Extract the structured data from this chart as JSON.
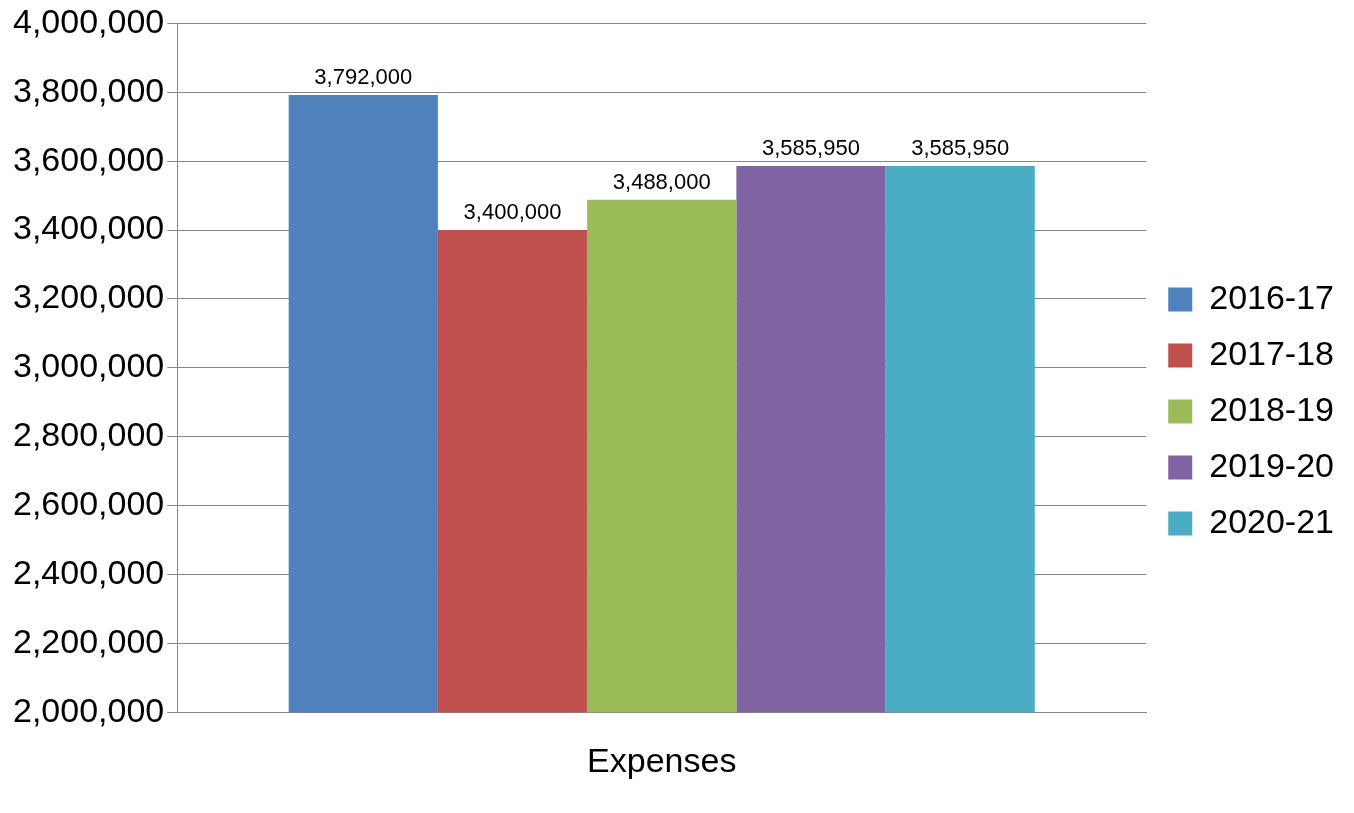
{
  "chart_data": {
    "type": "bar",
    "categories": [
      "Expenses"
    ],
    "series": [
      {
        "name": "2016-17",
        "color": "#4f81bd",
        "values": [
          3792000
        ],
        "value_labels": [
          "3,792,000"
        ]
      },
      {
        "name": "2017-18",
        "color": "#c0504d",
        "values": [
          3400000
        ],
        "value_labels": [
          "3,400,000"
        ]
      },
      {
        "name": "2018-19",
        "color": "#9bbb59",
        "values": [
          3488000
        ],
        "value_labels": [
          "3,488,000"
        ]
      },
      {
        "name": "2019-20",
        "color": "#8064a2",
        "values": [
          3585950
        ],
        "value_labels": [
          "3,585,950"
        ]
      },
      {
        "name": "2020-21",
        "color": "#4bacc6",
        "values": [
          3585950
        ],
        "value_labels": [
          "3,585,950"
        ]
      }
    ],
    "ylim": [
      2000000,
      4000000
    ],
    "yticks": [
      {
        "value": 2000000,
        "label": "2,000,000"
      },
      {
        "value": 2200000,
        "label": "2,200,000"
      },
      {
        "value": 2400000,
        "label": "2,400,000"
      },
      {
        "value": 2600000,
        "label": "2,600,000"
      },
      {
        "value": 2800000,
        "label": "2,800,000"
      },
      {
        "value": 3000000,
        "label": "3,000,000"
      },
      {
        "value": 3200000,
        "label": "3,200,000"
      },
      {
        "value": 3400000,
        "label": "3,400,000"
      },
      {
        "value": 3600000,
        "label": "3,600,000"
      },
      {
        "value": 3800000,
        "label": "3,800,000"
      },
      {
        "value": 4000000,
        "label": "4,000,000"
      }
    ],
    "grid": "y",
    "legend": "right"
  }
}
